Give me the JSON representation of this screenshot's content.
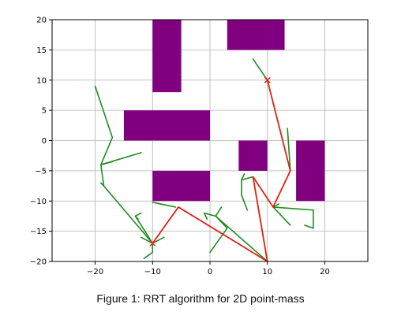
{
  "caption": "Figure 1: RRT algorithm for 2D point-mass",
  "chart_data": {
    "type": "line",
    "title": "",
    "xlabel": "",
    "ylabel": "",
    "xlim": [
      -27.5,
      27.5
    ],
    "ylim": [
      -20,
      20
    ],
    "xticks": [
      -20,
      -10,
      0,
      10,
      20
    ],
    "yticks": [
      -20,
      -15,
      -10,
      -5,
      0,
      5,
      10,
      15,
      20
    ],
    "xtick_labels": [
      "−20",
      "−10",
      "0",
      "10",
      "20"
    ],
    "ytick_labels": [
      "−20",
      "−15",
      "−10",
      "−5",
      "0",
      "5",
      "10",
      "15",
      "20"
    ],
    "grid": true,
    "colors": {
      "obstacle": "#800080",
      "tree": "#228b22",
      "path": "#dd2211",
      "marker": "#ee2222",
      "grid": "#b0b0b0"
    },
    "obstacles": [
      {
        "x0": -10,
        "x1": -5,
        "y0": 8,
        "y1": 20
      },
      {
        "x0": 3,
        "x1": 13,
        "y0": 15,
        "y1": 20
      },
      {
        "x0": -15,
        "x1": 0,
        "y0": 0,
        "y1": 5
      },
      {
        "x0": -10,
        "x1": 0,
        "y0": -10,
        "y1": -5
      },
      {
        "x0": 5,
        "x1": 10,
        "y0": -5,
        "y1": 0
      },
      {
        "x0": 15,
        "x1": 20,
        "y0": -10,
        "y1": 0
      }
    ],
    "tree_edges": [
      [
        [
          -20,
          9
        ],
        [
          -17,
          0.5
        ]
      ],
      [
        [
          -17,
          0.5
        ],
        [
          -19,
          -4
        ]
      ],
      [
        [
          -19,
          -4
        ],
        [
          -12,
          -2
        ]
      ],
      [
        [
          -19,
          -4
        ],
        [
          -17,
          -3.5
        ]
      ],
      [
        [
          -19,
          -4
        ],
        [
          -18.5,
          -7.5
        ]
      ],
      [
        [
          -18.5,
          -7.5
        ],
        [
          -19,
          -7
        ]
      ],
      [
        [
          -18.5,
          -7.5
        ],
        [
          -10,
          -17
        ]
      ],
      [
        [
          -10,
          -17
        ],
        [
          -13,
          -12.5
        ]
      ],
      [
        [
          -13,
          -12.5
        ],
        [
          -12.5,
          -13
        ]
      ],
      [
        [
          -13,
          -12.5
        ],
        [
          -12,
          -12
        ]
      ],
      [
        [
          -10,
          -17
        ],
        [
          -12,
          -16
        ]
      ],
      [
        [
          -10,
          -17
        ],
        [
          -8,
          -16
        ]
      ],
      [
        [
          -10,
          -17
        ],
        [
          -10,
          -18.5
        ]
      ],
      [
        [
          -10,
          -18.5
        ],
        [
          -11.5,
          -19.5
        ]
      ],
      [
        [
          -10,
          -10.2
        ],
        [
          -6,
          -11
        ]
      ],
      [
        [
          10,
          -20
        ],
        [
          1,
          -12.5
        ]
      ],
      [
        [
          1,
          -12.5
        ],
        [
          2,
          -11
        ]
      ],
      [
        [
          1,
          -12.5
        ],
        [
          -1,
          -12
        ]
      ],
      [
        [
          -1,
          -12
        ],
        [
          -0.5,
          -13
        ]
      ],
      [
        [
          1,
          -12.5
        ],
        [
          3,
          -14.5
        ]
      ],
      [
        [
          3,
          -14.5
        ],
        [
          0,
          -18.5
        ]
      ],
      [
        [
          7.5,
          -6
        ],
        [
          5.5,
          -6.5
        ]
      ],
      [
        [
          5.5,
          -6.5
        ],
        [
          6,
          -5.5
        ]
      ],
      [
        [
          5.5,
          -6.5
        ],
        [
          5.5,
          -9
        ]
      ],
      [
        [
          5.5,
          -9
        ],
        [
          6.5,
          -11.5
        ]
      ],
      [
        [
          11,
          -11
        ],
        [
          18,
          -11.5
        ]
      ],
      [
        [
          18,
          -11.5
        ],
        [
          18,
          -14.5
        ]
      ],
      [
        [
          18,
          -14.5
        ],
        [
          16.5,
          -14
        ]
      ],
      [
        [
          11,
          -11
        ],
        [
          14,
          -14
        ]
      ],
      [
        [
          11,
          -11
        ],
        [
          12,
          -10.5
        ]
      ],
      [
        [
          14,
          -5
        ],
        [
          13.5,
          2
        ]
      ],
      [
        [
          10,
          10
        ],
        [
          7.5,
          13.5
        ]
      ]
    ],
    "path": [
      [
        -10,
        -17
      ],
      [
        -5.5,
        -11
      ],
      [
        10,
        -20
      ],
      [
        7.5,
        -6
      ],
      [
        11,
        -11
      ],
      [
        14,
        -5
      ],
      [
        10,
        10
      ]
    ],
    "markers": [
      [
        -10,
        -17
      ],
      [
        10,
        10
      ]
    ]
  }
}
